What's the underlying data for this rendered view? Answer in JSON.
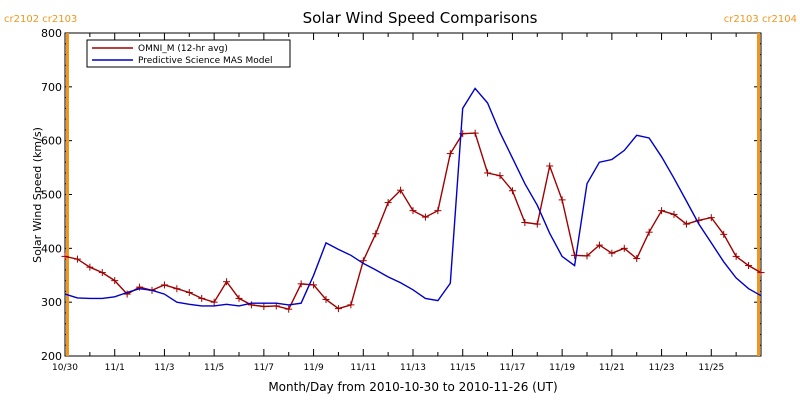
{
  "chart_data": {
    "type": "line",
    "title": "Solar Wind Speed Comparisons",
    "xlabel": "Month/Day from 2010-10-30 to 2010-11-26 (UT)",
    "ylabel": "Solar Wind Speed (km/s)",
    "x_start_date": "2010-10-30",
    "xlim": [
      0,
      28
    ],
    "ylim": [
      200,
      800
    ],
    "y_ticks": [
      200,
      300,
      400,
      500,
      600,
      700,
      800
    ],
    "x_ticks": [
      {
        "x": 0,
        "label": "10/30"
      },
      {
        "x": 2,
        "label": "11/1"
      },
      {
        "x": 4,
        "label": "11/3"
      },
      {
        "x": 6,
        "label": "11/5"
      },
      {
        "x": 8,
        "label": "11/7"
      },
      {
        "x": 10,
        "label": "11/9"
      },
      {
        "x": 12,
        "label": "11/11"
      },
      {
        "x": 14,
        "label": "11/13"
      },
      {
        "x": 16,
        "label": "11/15"
      },
      {
        "x": 18,
        "label": "11/17"
      },
      {
        "x": 20,
        "label": "11/19"
      },
      {
        "x": 22,
        "label": "11/21"
      },
      {
        "x": 24,
        "label": "11/23"
      },
      {
        "x": 26,
        "label": "11/25"
      }
    ],
    "carrington_markers": [
      {
        "x": 0.1,
        "label": "cr2102 cr2103",
        "label_side": "left"
      },
      {
        "x": 27.9,
        "label": "cr2103 cr2104",
        "label_side": "right"
      }
    ],
    "legend_position": "top-left",
    "series": [
      {
        "name": "OMNI_M (12-hr avg)",
        "color": "#a00000",
        "marker": "plus",
        "x": [
          0,
          0.5,
          1,
          1.5,
          2,
          2.5,
          3,
          3.5,
          4,
          4.5,
          5,
          5.5,
          6,
          6.5,
          7,
          7.5,
          8,
          8.5,
          9,
          9.5,
          10,
          10.5,
          11,
          11.5,
          12,
          12.5,
          13,
          13.5,
          14,
          14.5,
          15,
          15.5,
          16,
          16.5,
          17,
          17.5,
          18,
          18.5,
          19,
          19.5,
          20,
          20.5,
          21,
          21.5,
          22,
          22.5,
          23,
          23.5,
          24,
          24.5,
          25,
          25.5,
          26,
          26.5,
          27,
          27.5,
          28
        ],
        "y": [
          385,
          380,
          365,
          355,
          340,
          315,
          328,
          322,
          332,
          325,
          318,
          307,
          300,
          338,
          307,
          295,
          292,
          293,
          287,
          334,
          332,
          305,
          288,
          295,
          377,
          427,
          485,
          508,
          470,
          458,
          470,
          576,
          613,
          614,
          540,
          535,
          507,
          448,
          445,
          553,
          490,
          387,
          386,
          406,
          391,
          400,
          381,
          430,
          470,
          463,
          445,
          452,
          457,
          426,
          385,
          368,
          355
        ]
      },
      {
        "name": "Predictive Science MAS Model",
        "color": "#0000c8",
        "marker": "none",
        "x": [
          0,
          0.5,
          1,
          1.5,
          2,
          2.5,
          3,
          3.5,
          4,
          4.5,
          5,
          5.5,
          6,
          6.5,
          7,
          7.5,
          8,
          8.5,
          9,
          9.5,
          10,
          10.5,
          11,
          11.5,
          12,
          12.5,
          13,
          13.5,
          14,
          14.5,
          15,
          15.5,
          16,
          16.5,
          17,
          17.5,
          18,
          18.5,
          19,
          19.5,
          20,
          20.5,
          21,
          21.5,
          22,
          22.5,
          23,
          23.5,
          24,
          24.5,
          25,
          25.5,
          26,
          26.5,
          27,
          27.5,
          28
        ],
        "y": [
          315,
          308,
          307,
          307,
          310,
          318,
          325,
          322,
          315,
          300,
          296,
          293,
          293,
          296,
          293,
          298,
          298,
          298,
          295,
          298,
          350,
          410,
          398,
          387,
          372,
          360,
          347,
          336,
          323,
          307,
          303,
          335,
          660,
          697,
          670,
          615,
          568,
          520,
          480,
          428,
          385,
          368,
          520,
          560,
          565,
          582,
          610,
          605,
          570,
          530,
          488,
          445,
          410,
          375,
          345,
          325,
          312
        ]
      }
    ]
  }
}
